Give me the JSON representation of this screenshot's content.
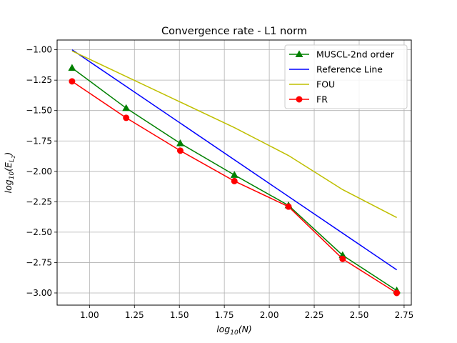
{
  "chart_data": {
    "type": "line",
    "title": "Convergence rate - L1 norm",
    "xlabel": "log",
    "xlabel_sub": "10",
    "xlabel_rest": "(N)",
    "ylabel": "log",
    "ylabel_sub": "10",
    "ylabel_rest": "(E",
    "ylabel_sub2": "L",
    "ylabel_sub3": "1",
    "ylabel_close": ")",
    "xlim": [
      0.82,
      2.79
    ],
    "ylim": [
      -3.1,
      -0.92
    ],
    "xticks": [
      1.0,
      1.25,
      1.5,
      1.75,
      2.0,
      2.25,
      2.5,
      2.75
    ],
    "xtick_labels": [
      "1.00",
      "1.25",
      "1.50",
      "1.75",
      "2.00",
      "2.25",
      "2.50",
      "2.75"
    ],
    "yticks": [
      -1.0,
      -1.25,
      -1.5,
      -1.75,
      -2.0,
      -2.25,
      -2.5,
      -2.75,
      -3.0
    ],
    "ytick_labels": [
      "−1.00",
      "−1.25",
      "−1.50",
      "−1.75",
      "−2.00",
      "−2.25",
      "−2.50",
      "−2.75",
      "−3.00"
    ],
    "grid": true,
    "legend_position": "top-right",
    "series": [
      {
        "name": "MUSCL-2nd order",
        "color": "#008000",
        "marker": "triangle",
        "x": [
          0.903,
          1.204,
          1.505,
          1.806,
          2.107,
          2.408,
          2.709
        ],
        "y": [
          -1.15,
          -1.48,
          -1.77,
          -2.03,
          -2.28,
          -2.69,
          -2.98
        ]
      },
      {
        "name": "Reference Line",
        "color": "#0000ff",
        "marker": "none",
        "x": [
          0.903,
          2.709
        ],
        "y": [
          -1.0,
          -2.81
        ]
      },
      {
        "name": "FOU",
        "color": "#bfbf00",
        "marker": "none",
        "x": [
          0.903,
          1.204,
          1.505,
          1.806,
          2.107,
          2.408,
          2.709
        ],
        "y": [
          -1.01,
          -1.22,
          -1.43,
          -1.64,
          -1.87,
          -2.15,
          -2.38
        ]
      },
      {
        "name": "FR",
        "color": "#ff0000",
        "marker": "circle",
        "x": [
          0.903,
          1.204,
          1.505,
          1.806,
          2.107,
          2.408,
          2.709
        ],
        "y": [
          -1.26,
          -1.56,
          -1.83,
          -2.08,
          -2.29,
          -2.72,
          -3.0
        ]
      }
    ]
  }
}
